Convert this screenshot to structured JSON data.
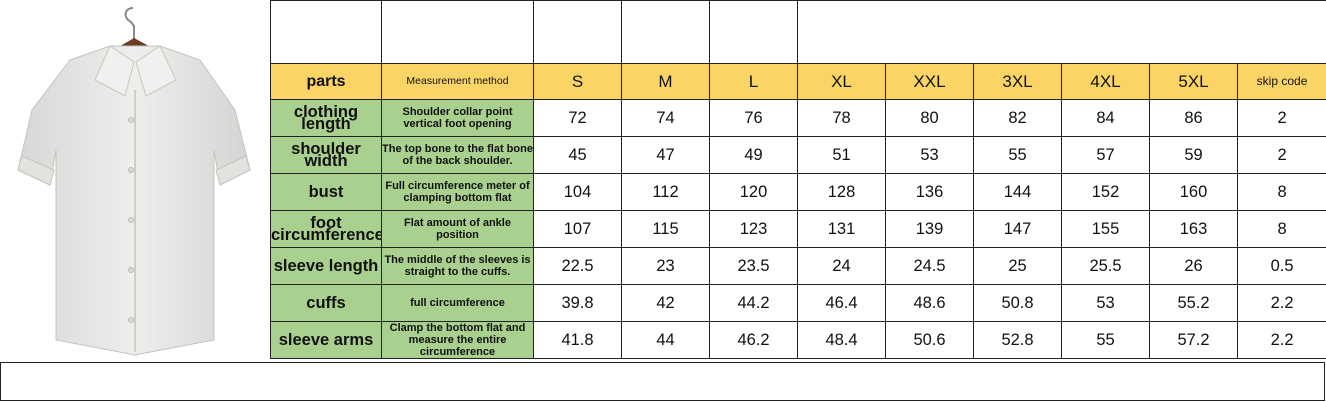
{
  "image": {
    "alt": ""
  },
  "table": {
    "header": {
      "parts": "parts",
      "method": "Measurement method",
      "sizes": [
        "S",
        "M",
        "L",
        "XL",
        "XXL",
        "3XL",
        "4XL",
        "5XL"
      ],
      "skip": "skip code"
    },
    "rows": [
      {
        "part": "clothing length",
        "method": "Shoulder collar point vertical foot opening",
        "values": [
          "72",
          "74",
          "76",
          "78",
          "80",
          "82",
          "84",
          "86"
        ],
        "skip": "2"
      },
      {
        "part": "shoulder width",
        "method": "The top bone to the flat bone of the back shoulder.",
        "values": [
          "45",
          "47",
          "49",
          "51",
          "53",
          "55",
          "57",
          "59"
        ],
        "skip": "2"
      },
      {
        "part": "bust",
        "method": "Full circumference meter of clamping bottom flat",
        "values": [
          "104",
          "112",
          "120",
          "128",
          "136",
          "144",
          "152",
          "160"
        ],
        "skip": "8"
      },
      {
        "part": "foot circumference",
        "method": "Flat amount of ankle position",
        "values": [
          "107",
          "115",
          "123",
          "131",
          "139",
          "147",
          "155",
          "163"
        ],
        "skip": "8"
      },
      {
        "part": "sleeve length",
        "method": "The middle of the sleeves is straight to the cuffs.",
        "values": [
          "22.5",
          "23",
          "23.5",
          "24",
          "24.5",
          "25",
          "25.5",
          "26"
        ],
        "skip": "0.5"
      },
      {
        "part": "cuffs",
        "method": "full circumference",
        "values": [
          "39.8",
          "42",
          "44.2",
          "46.4",
          "48.6",
          "50.8",
          "53",
          "55.2"
        ],
        "skip": "2.2"
      },
      {
        "part": "sleeve arms",
        "method": "Clamp the bottom flat and measure the entire circumference",
        "values": [
          "41.8",
          "44",
          "46.2",
          "48.4",
          "50.6",
          "52.8",
          "55",
          "57.2"
        ],
        "skip": "2.2"
      }
    ]
  },
  "colors": {
    "header": "#fbd466",
    "label_cells": "#a9d08e",
    "border": "#222222"
  }
}
